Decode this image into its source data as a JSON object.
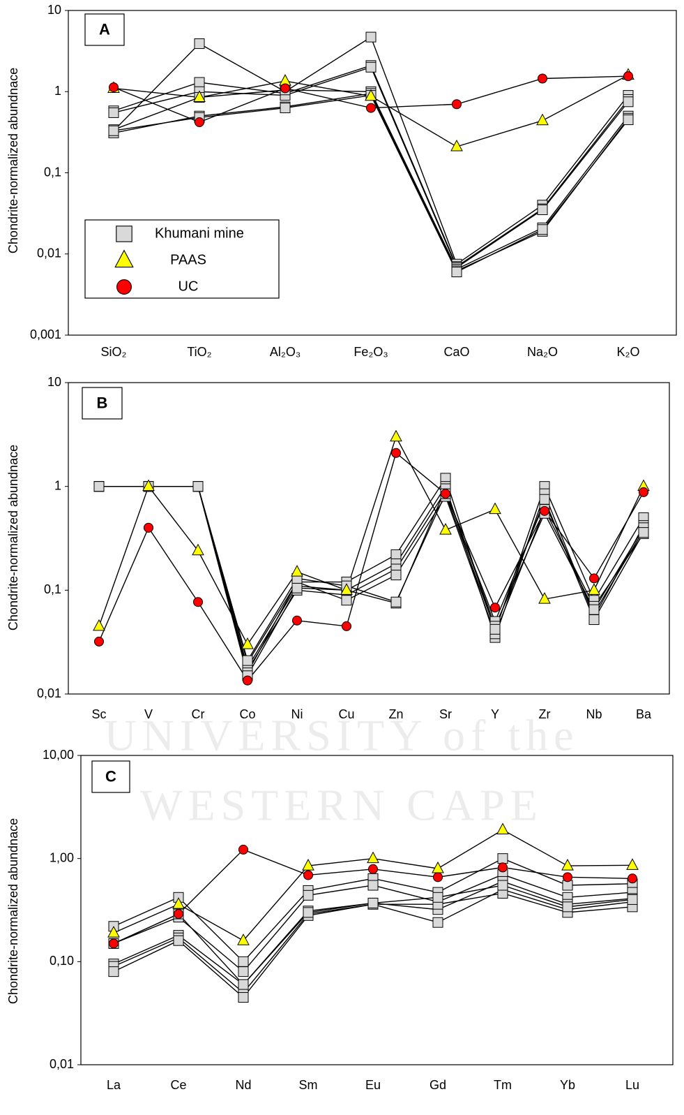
{
  "watermark": [
    "UNIVERSITY of the",
    "WESTERN CAPE"
  ],
  "chart_data": [
    {
      "type": "line",
      "panel_label": "A",
      "y_label": "Chondrite-normalized abundnace",
      "categories": [
        "SiO₂",
        "TiO₂",
        "Al₂O₃",
        "Fe₂O₃",
        "CaO",
        "Na₂O",
        "K₂O"
      ],
      "log_scale": true,
      "grid": false,
      "legend": "lower-left",
      "ylim": [
        0.001,
        10
      ],
      "yticks": [
        {
          "value": 0.001,
          "label": "0,001"
        },
        {
          "value": 0.01,
          "label": "0,01"
        },
        {
          "value": 0.1,
          "label": "0,1"
        },
        1,
        10
      ],
      "series": [
        {
          "name": "Khumani mine",
          "marker": "square",
          "color": "#d9d9d9",
          "values": [
            [
              0.33,
              3.9,
              1.0,
              4.7,
              0.0075,
              0.04,
              0.9
            ],
            [
              0.58,
              1.3,
              0.95,
              2.1,
              0.007,
              0.036,
              0.8
            ],
            [
              0.55,
              1.0,
              0.9,
              2.0,
              0.0068,
              0.035,
              0.75
            ],
            [
              0.34,
              0.85,
              1.05,
              1.0,
              0.0065,
              0.021,
              0.5
            ],
            [
              0.31,
              0.5,
              0.65,
              0.95,
              0.0062,
              0.019,
              0.47
            ],
            [
              0.33,
              0.48,
              0.63,
              0.9,
              0.006,
              0.02,
              0.45
            ]
          ]
        },
        {
          "name": "PAAS",
          "marker": "triangle",
          "color": "#ffff00",
          "values": [
            1.1,
            0.85,
            1.35,
            0.88,
            0.21,
            0.44,
            1.6
          ]
        },
        {
          "name": "UC",
          "marker": "circle",
          "color": "#ff0000",
          "values": [
            1.13,
            0.42,
            1.1,
            0.63,
            0.7,
            1.45,
            1.55
          ]
        }
      ]
    },
    {
      "type": "line",
      "panel_label": "B",
      "y_label": "Chondrite-normalized abundnace",
      "categories": [
        "Sc",
        "V",
        "Cr",
        "Co",
        "Ni",
        "Cu",
        "Zn",
        "Sr",
        "Y",
        "Zr",
        "Nb",
        "Ba"
      ],
      "log_scale": true,
      "grid": false,
      "ylim": [
        0.01,
        10
      ],
      "yticks": [
        {
          "value": 0.01,
          "label": "0,01"
        },
        {
          "value": 0.1,
          "label": "0,1"
        },
        1,
        10
      ],
      "series": [
        {
          "marker": "square",
          "color": "#d9d9d9",
          "values": [
            [
              1,
              1,
              1,
              0.02,
              0.12,
              0.12,
              0.22,
              1.2,
              0.04,
              1.0,
              0.08,
              0.5
            ],
            [
              1,
              1,
              1,
              0.018,
              0.11,
              0.1,
              0.18,
              1.0,
              0.035,
              0.85,
              0.055,
              0.42
            ],
            [
              1,
              1,
              1,
              0.017,
              0.1,
              0.09,
              0.16,
              0.9,
              0.05,
              0.7,
              0.06,
              0.38
            ],
            [
              1,
              1,
              1,
              0.016,
              0.12,
              0.08,
              0.14,
              0.8,
              0.038,
              0.6,
              0.07,
              0.35
            ],
            [
              1,
              1,
              1,
              0.015,
              0.105,
              0.1,
              0.075,
              0.95,
              0.045,
              0.55,
              0.065,
              0.4
            ],
            [
              1,
              1,
              1,
              0.021,
              0.13,
              0.11,
              0.077,
              0.85,
              0.042,
              0.75,
              0.052,
              0.36
            ]
          ]
        },
        {
          "marker": "triangle",
          "color": "#ffff00",
          "values": [
            0.045,
            1.0,
            0.24,
            0.03,
            0.15,
            0.1,
            3.0,
            0.38,
            0.6,
            0.082,
            0.1,
            1.0
          ]
        },
        {
          "marker": "circle",
          "color": "#ff0000",
          "values": [
            0.032,
            0.4,
            0.077,
            0.0135,
            0.051,
            0.045,
            2.1,
            0.85,
            0.068,
            0.58,
            0.13,
            0.88
          ]
        }
      ]
    },
    {
      "type": "line",
      "panel_label": "C",
      "y_label": "Chondrite-normalized abundnace",
      "categories": [
        "La",
        "Ce",
        "Nd",
        "Sm",
        "Eu",
        "Gd",
        "Tm",
        "Yb",
        "Lu"
      ],
      "log_scale": true,
      "grid": false,
      "ylim": [
        0.01,
        10
      ],
      "yticks": [
        {
          "value": 0.01,
          "label": "0,01"
        },
        {
          "value": 0.1,
          "label": "0,10"
        },
        {
          "value": 1,
          "label": "1,00"
        },
        {
          "value": 10,
          "label": "10,00"
        }
      ],
      "series": [
        {
          "marker": "square",
          "color": "#d9d9d9",
          "values": [
            [
              0.22,
              0.42,
              0.1,
              0.49,
              0.64,
              0.47,
              1.0,
              0.55,
              0.57
            ],
            [
              0.15,
              0.27,
              0.08,
              0.44,
              0.55,
              0.38,
              0.7,
              0.42,
              0.47
            ],
            [
              0.095,
              0.18,
              0.06,
              0.31,
              0.37,
              0.32,
              0.6,
              0.36,
              0.41
            ],
            [
              0.09,
              0.17,
              0.05,
              0.29,
              0.36,
              0.24,
              0.5,
              0.32,
              0.38
            ],
            [
              0.08,
              0.16,
              0.045,
              0.28,
              0.36,
              0.36,
              0.46,
              0.3,
              0.34
            ],
            [
              0.15,
              0.29,
              0.06,
              0.3,
              0.37,
              0.42,
              0.55,
              0.34,
              0.4
            ]
          ]
        },
        {
          "marker": "triangle",
          "color": "#ffff00",
          "values": [
            0.19,
            0.36,
            0.16,
            0.85,
            1.0,
            0.8,
            1.9,
            0.85,
            0.86
          ]
        },
        {
          "marker": "circle",
          "color": "#ff0000",
          "values": [
            0.15,
            0.29,
            1.22,
            0.69,
            0.79,
            0.66,
            0.82,
            0.66,
            0.64
          ]
        }
      ]
    }
  ]
}
